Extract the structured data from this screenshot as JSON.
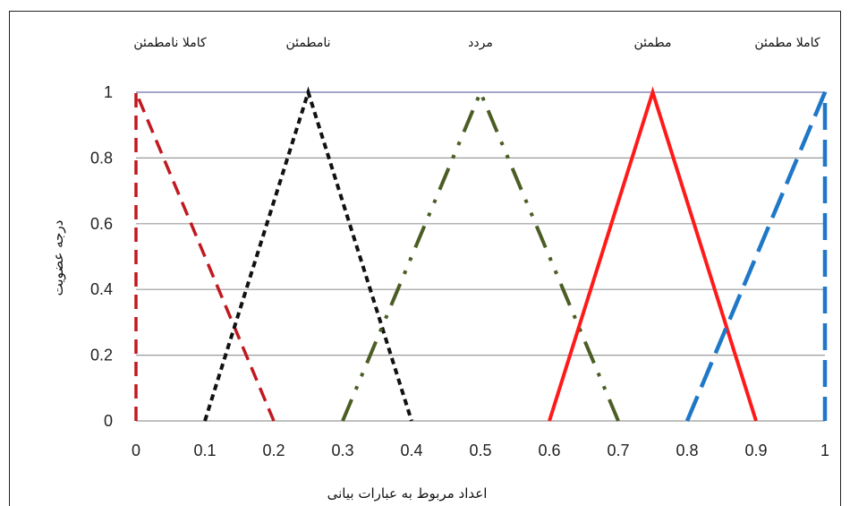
{
  "chart_data": {
    "type": "line",
    "title": "",
    "xlabel": "اعداد مربوط به عبارات بیانی",
    "ylabel": "درجه عضویت",
    "xlim": [
      0,
      1
    ],
    "ylim": [
      0,
      1
    ],
    "x_ticks": [
      "0",
      "0.1",
      "0.2",
      "0.3",
      "0.4",
      "0.5",
      "0.6",
      "0.7",
      "0.8",
      "0.9",
      "1"
    ],
    "y_ticks": [
      "0",
      "0.2",
      "0.4",
      "0.6",
      "0.8",
      "1"
    ],
    "grid": true,
    "series": [
      {
        "name": "کاملا نامطمئن",
        "color": "#c0191f",
        "dash": "dash",
        "points": [
          [
            0,
            0
          ],
          [
            0,
            1
          ],
          [
            0.2,
            0
          ]
        ]
      },
      {
        "name": "نامطمئن",
        "color": "#111111",
        "dash": "dot",
        "points": [
          [
            0.1,
            0
          ],
          [
            0.25,
            1
          ],
          [
            0.4,
            0
          ]
        ]
      },
      {
        "name": "مردد",
        "color": "#4a5e23",
        "dash": "dashdotdot",
        "points": [
          [
            0.3,
            0
          ],
          [
            0.5,
            1
          ],
          [
            0.7,
            0
          ]
        ]
      },
      {
        "name": "مطمئن",
        "color": "#ff1a1a",
        "dash": "solid",
        "points": [
          [
            0.6,
            0
          ],
          [
            0.75,
            1
          ],
          [
            0.9,
            0
          ]
        ]
      },
      {
        "name": "کاملا مطمئن",
        "color": "#1f77c8",
        "dash": "longdash",
        "points": [
          [
            0.8,
            0
          ],
          [
            1,
            1
          ],
          [
            1,
            0
          ]
        ]
      }
    ]
  }
}
